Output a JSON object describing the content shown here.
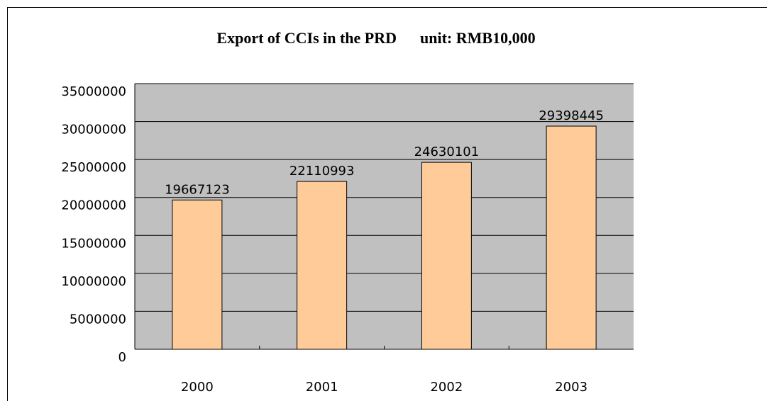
{
  "chart_data": {
    "type": "bar",
    "title": "Export of CCIs in the PRD      unit: RMB10,000",
    "categories": [
      "2000",
      "2001",
      "2002",
      "2003"
    ],
    "values": [
      19667123,
      22110993,
      24630101,
      29398445
    ],
    "color": "#ffcc99",
    "ylim": [
      0,
      35000000
    ],
    "yticks": [
      0,
      5000000,
      10000000,
      15000000,
      20000000,
      25000000,
      30000000,
      35000000
    ],
    "grid": true
  }
}
